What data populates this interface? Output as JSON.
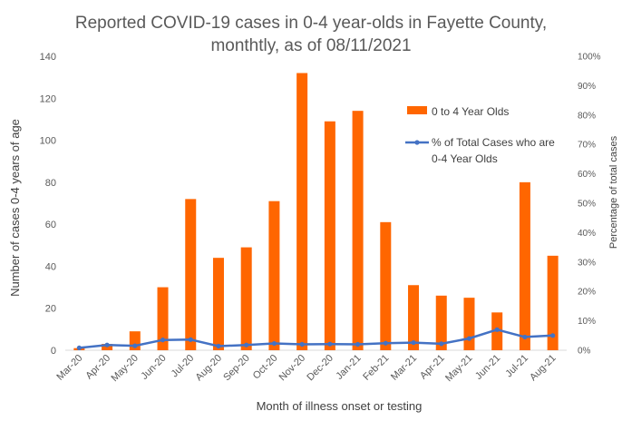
{
  "chart_data": {
    "type": "bar",
    "title": "Reported COVID-19 cases in 0-4 year-olds in Fayette County, monthtly, as of 08/11/2021",
    "title_lines": [
      "Reported COVID-19 cases in 0-4 year-olds in Fayette County,",
      "monthtly, as of 08/11/2021"
    ],
    "xlabel": "Month of illness onset or testing",
    "ylabel": "Number of cases 0-4 years of age",
    "y2label": "Percentage of total cases",
    "ylim": [
      0,
      140
    ],
    "y2lim": [
      0,
      100
    ],
    "yticks": [
      "0",
      "20",
      "40",
      "60",
      "80",
      "100",
      "120",
      "140"
    ],
    "y2ticks": [
      "0%",
      "10%",
      "20%",
      "30%",
      "40%",
      "50%",
      "60%",
      "70%",
      "80%",
      "90%",
      "100%"
    ],
    "categories": [
      "Mar-20",
      "Apr-20",
      "May-20",
      "Jun-20",
      "Jul-20",
      "Aug-20",
      "Sep-20",
      "Oct-20",
      "Nov-20",
      "Dec-20",
      "Jan-21",
      "Feb-21",
      "Mar-21",
      "Apr-21",
      "May-21",
      "Jun-21",
      "Jul-21",
      "Aug-21"
    ],
    "series": [
      {
        "name": "0 to 4 Year Olds",
        "type": "bar",
        "axis": "left",
        "color": "#FF6600",
        "values": [
          1,
          3,
          9,
          30,
          72,
          44,
          49,
          71,
          132,
          109,
          114,
          61,
          31,
          26,
          25,
          18,
          80,
          45
        ]
      },
      {
        "name": "% of Total Cases who are 0-4 Year Olds",
        "legend_lines": [
          "% of Total Cases who are",
          "0-4 Year Olds"
        ],
        "type": "line",
        "axis": "right",
        "color": "#4472C4",
        "values": [
          0.8,
          1.8,
          1.5,
          3.5,
          3.6,
          1.4,
          1.8,
          2.3,
          2.0,
          2.1,
          2.0,
          2.4,
          2.6,
          2.2,
          4.0,
          7.0,
          4.5,
          5.0
        ]
      }
    ],
    "grid": false,
    "legend_position": "right-inside-top"
  }
}
